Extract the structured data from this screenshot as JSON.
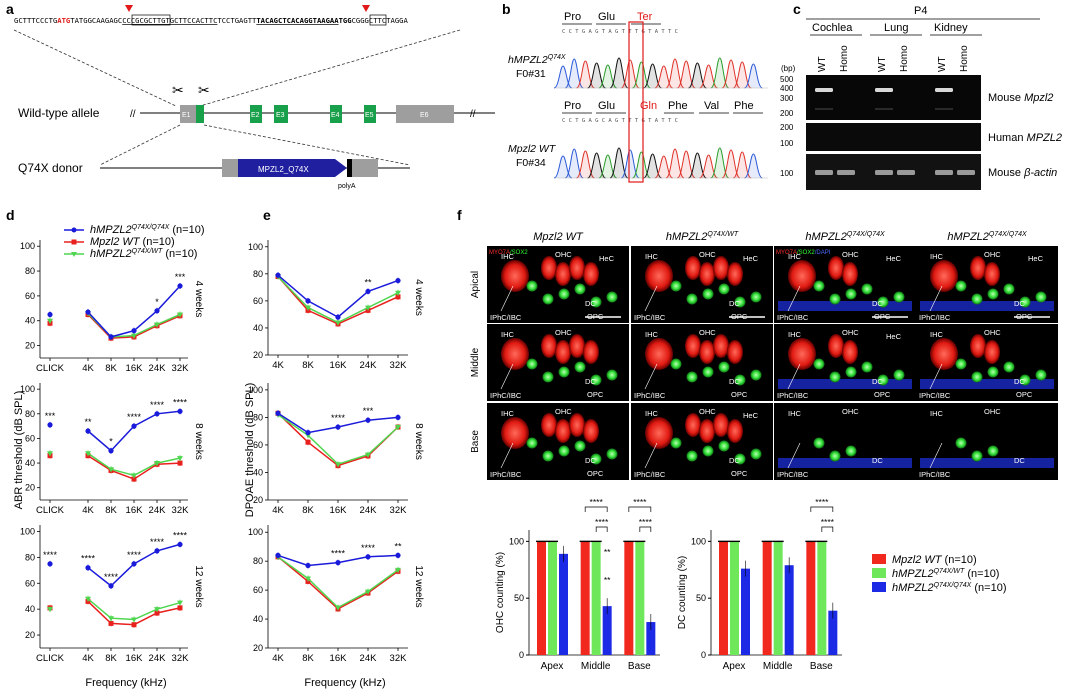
{
  "panels": {
    "a": {
      "label": "a",
      "sequence": {
        "pre": "GCTTTCCCTG",
        "atg": "ATG",
        "mid1": "TATGGCAAGAGC",
        "box1": "CCCGCGCTTGTGCTTCCACTTC",
        "mid2": "TCCTGAGTT",
        "box2": "TACAGCTCACAGGTAAGAA",
        "box3": "TGG",
        "post": "CGGGCTTCTAGGA"
      },
      "wildtype_label": "Wild-type allele",
      "donor_label": "Q74X donor",
      "exons": [
        "E1",
        "E2",
        "E3",
        "E4",
        "E5",
        "E6"
      ],
      "donor_gene": "MPZL2_Q74X",
      "polya": "polyA"
    },
    "b": {
      "label": "b",
      "top_aa": [
        "Pro",
        "Glu",
        "Ter"
      ],
      "top_name": "hMPZL2",
      "top_sup": "Q74X",
      "top_id": "F0#31",
      "top_seq": "C C T G A G T A G T T T G T A T T C",
      "bottom_aa": [
        "Pro",
        "Glu",
        "Gln",
        "Phe",
        "Val",
        "Phe"
      ],
      "bottom_name": "Mpzl2 WT",
      "bottom_id": "F0#34",
      "bottom_seq": "C C T G A G C A G T T T G T A T T C"
    },
    "c": {
      "label": "c",
      "stage": "P4",
      "tissues": [
        "Cochlea",
        "Lung",
        "Kidney"
      ],
      "lanes": [
        "WT",
        "Homo",
        "WT",
        "Homo",
        "WT",
        "Homo"
      ],
      "bp_unit": "(bp)",
      "gel1_ladder": [
        "500",
        "400",
        "300",
        "200"
      ],
      "gel2_ladder": [
        "200",
        "100"
      ],
      "gel3_ladder": [
        "100"
      ],
      "gel_labels": [
        "Mouse Mpzl2",
        "Human MPZL2",
        "Mouse β-actin"
      ]
    },
    "d": {
      "label": "d",
      "ylabel": "ABR threshold (dB SPL)",
      "xlabel": "Frequency (kHz)",
      "x_ticks": [
        "CLICK",
        "4K",
        "8K",
        "16K",
        "24K",
        "32K"
      ],
      "y_ticks": [
        "20",
        "40",
        "60",
        "80",
        "100"
      ],
      "legend": [
        {
          "name": "hMPZL2",
          "sup": "Q74X/Q74X",
          "n": "(n=10)",
          "color": "#1a1adb"
        },
        {
          "name": "Mpzl2 WT",
          "sup": "",
          "n": "(n=10)",
          "color": "#e8201e"
        },
        {
          "name": "hMPZL2",
          "sup": "Q74X/WT",
          "n": "(n=10)",
          "color": "#4fd64f"
        }
      ],
      "ages": [
        "4 weeks",
        "8 weeks",
        "12 weeks"
      ]
    },
    "e": {
      "label": "e",
      "ylabel": "DPOAE threshold (dB SPL)",
      "xlabel": "Frequency (kHz)",
      "x_ticks": [
        "4K",
        "8K",
        "16K",
        "24K",
        "32K"
      ],
      "y_ticks": [
        "20",
        "40",
        "60",
        "80",
        "100"
      ],
      "ages": [
        "4 weeks",
        "8 weeks",
        "12 weeks"
      ]
    },
    "f": {
      "label": "f",
      "columns": [
        {
          "name": "Mpzl2 WT",
          "sup": ""
        },
        {
          "name": "hMPZL2",
          "sup": "Q74X/WT"
        },
        {
          "name": "hMPZL2",
          "sup": "Q74X/Q74X"
        },
        {
          "name": "hMPZL2",
          "sup": "Q74X/Q74X"
        }
      ],
      "rows": [
        "Apical",
        "Middle",
        "Base"
      ],
      "stain_legend": [
        "MYO7A",
        "SOX2",
        "DAPI"
      ],
      "cell_labels": [
        "IHC",
        "OHC",
        "HeC",
        "DC",
        "OPC",
        "IPhC/IBC"
      ],
      "bar_legend": [
        {
          "name": "Mpzl2 WT",
          "n": "(n=10)",
          "color": "#f0281e"
        },
        {
          "name": "hMPZL2",
          "sup": "Q74X/WT",
          "n": "(n=10)",
          "color": "#6ee85a"
        },
        {
          "name": "hMPZL2",
          "sup": "Q74X/Q74X",
          "n": "(n=10)",
          "color": "#1c2ae6"
        }
      ],
      "ohc_ylabel": "OHC counting (%)",
      "dc_ylabel": "DC counting (%)",
      "bar_y_ticks": [
        "0",
        "50",
        "100"
      ],
      "bar_categories": [
        "Apex",
        "Middle",
        "Base"
      ]
    }
  },
  "chart_data": [
    {
      "type": "line",
      "panel": "d",
      "age": "4 weeks",
      "x": [
        "CLICK",
        "4K",
        "8K",
        "16K",
        "24K",
        "32K"
      ],
      "ylim": [
        10,
        105
      ],
      "series": [
        {
          "name": "hMPZL2 Q74X/Q74X",
          "values": [
            45,
            47,
            27,
            32,
            48,
            68
          ]
        },
        {
          "name": "Mpzl2 WT",
          "values": [
            38,
            45,
            26,
            27,
            36,
            44
          ]
        },
        {
          "name": "hMPZL2 Q74X/WT",
          "values": [
            40,
            46,
            27,
            28,
            37,
            45
          ]
        }
      ],
      "annotations": [
        "*",
        "***"
      ]
    },
    {
      "type": "line",
      "panel": "d",
      "age": "8 weeks",
      "x": [
        "CLICK",
        "4K",
        "8K",
        "16K",
        "24K",
        "32K"
      ],
      "ylim": [
        10,
        105
      ],
      "series": [
        {
          "name": "hMPZL2 Q74X/Q74X",
          "values": [
            71,
            66,
            50,
            70,
            80,
            82
          ]
        },
        {
          "name": "Mpzl2 WT",
          "values": [
            46,
            46,
            34,
            27,
            39,
            40
          ]
        },
        {
          "name": "hMPZL2 Q74X/WT",
          "values": [
            48,
            48,
            35,
            30,
            40,
            44
          ]
        }
      ],
      "annotations": [
        "***",
        "**",
        "*",
        "****",
        "****",
        "****"
      ]
    },
    {
      "type": "line",
      "panel": "d",
      "age": "12 weeks",
      "x": [
        "CLICK",
        "4K",
        "8K",
        "16K",
        "24K",
        "32K"
      ],
      "ylim": [
        10,
        105
      ],
      "series": [
        {
          "name": "hMPZL2 Q74X/Q74X",
          "values": [
            75,
            72,
            58,
            75,
            85,
            90
          ]
        },
        {
          "name": "Mpzl2 WT",
          "values": [
            41,
            46,
            29,
            28,
            37,
            41
          ]
        },
        {
          "name": "hMPZL2 Q74X/WT",
          "values": [
            40,
            48,
            33,
            32,
            40,
            45
          ]
        }
      ],
      "annotations": [
        "****",
        "****",
        "****",
        "****",
        "****",
        "****"
      ]
    },
    {
      "type": "line",
      "panel": "e",
      "age": "4 weeks",
      "x": [
        "4K",
        "8K",
        "16K",
        "24K",
        "32K"
      ],
      "ylim": [
        20,
        105
      ],
      "series": [
        {
          "name": "hMPZL2 Q74X/Q74X",
          "values": [
            79,
            60,
            48,
            67,
            75
          ]
        },
        {
          "name": "Mpzl2 WT",
          "values": [
            78,
            53,
            43,
            53,
            63
          ]
        },
        {
          "name": "hMPZL2 Q74X/WT",
          "values": [
            78,
            55,
            44,
            55,
            66
          ]
        }
      ],
      "annotations": [
        "**"
      ]
    },
    {
      "type": "line",
      "panel": "e",
      "age": "8 weeks",
      "x": [
        "4K",
        "8K",
        "16K",
        "24K",
        "32K"
      ],
      "ylim": [
        20,
        105
      ],
      "series": [
        {
          "name": "hMPZL2 Q74X/Q74X",
          "values": [
            83,
            69,
            73,
            78,
            80
          ]
        },
        {
          "name": "Mpzl2 WT",
          "values": [
            83,
            62,
            45,
            52,
            73
          ]
        },
        {
          "name": "hMPZL2 Q74X/WT",
          "values": [
            82,
            67,
            46,
            53,
            73
          ]
        }
      ],
      "annotations": [
        "****",
        "***"
      ]
    },
    {
      "type": "line",
      "panel": "e",
      "age": "12 weeks",
      "x": [
        "4K",
        "8K",
        "16K",
        "24K",
        "32K"
      ],
      "ylim": [
        20,
        105
      ],
      "series": [
        {
          "name": "hMPZL2 Q74X/Q74X",
          "values": [
            84,
            77,
            79,
            83,
            84
          ]
        },
        {
          "name": "Mpzl2 WT",
          "values": [
            83,
            66,
            47,
            58,
            73
          ]
        },
        {
          "name": "hMPZL2 Q74X/WT",
          "values": [
            83,
            68,
            48,
            59,
            74
          ]
        }
      ],
      "annotations": [
        "****",
        "****",
        "****",
        "**"
      ]
    },
    {
      "type": "bar",
      "panel": "f",
      "ylabel": "OHC counting (%)",
      "categories": [
        "Apex",
        "Middle",
        "Base"
      ],
      "ylim": [
        0,
        110
      ],
      "series": [
        {
          "name": "Mpzl2 WT",
          "values": [
            100,
            100,
            100
          ]
        },
        {
          "name": "hMPZL2 Q74X/WT",
          "values": [
            100,
            100,
            100
          ]
        },
        {
          "name": "hMPZL2 Q74X/Q74X",
          "values": [
            89,
            43,
            29
          ]
        }
      ],
      "annotations": [
        "****",
        "****",
        "****",
        "****",
        "**",
        "**"
      ]
    },
    {
      "type": "bar",
      "panel": "f",
      "ylabel": "DC counting (%)",
      "categories": [
        "Apex",
        "Middle",
        "Base"
      ],
      "ylim": [
        0,
        110
      ],
      "series": [
        {
          "name": "Mpzl2 WT",
          "values": [
            100,
            100,
            100
          ]
        },
        {
          "name": "hMPZL2 Q74X/WT",
          "values": [
            100,
            100,
            100
          ]
        },
        {
          "name": "hMPZL2 Q74X/Q74X",
          "values": [
            76,
            79,
            39
          ]
        }
      ],
      "annotations": [
        "****",
        "****"
      ]
    }
  ]
}
